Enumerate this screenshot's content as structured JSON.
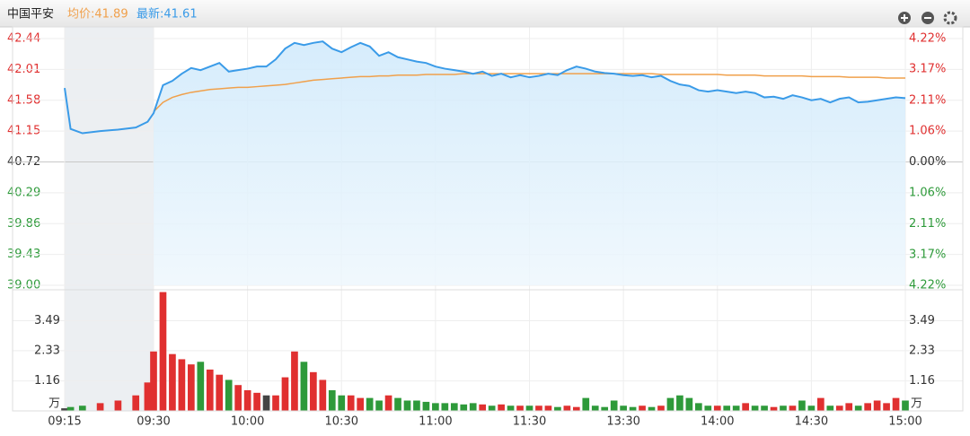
{
  "chart_data": {
    "type": "line",
    "title": "中国平安",
    "x": [
      -15,
      -14,
      -12,
      -9,
      -6,
      -3,
      -1,
      0,
      3,
      6,
      9,
      12,
      15,
      18,
      21,
      24,
      27,
      30,
      33,
      36,
      39,
      42,
      45,
      48,
      51,
      54,
      57,
      60,
      63,
      66,
      69,
      72,
      75,
      78,
      81,
      84,
      87,
      90,
      93,
      96,
      99,
      102,
      105,
      108,
      111,
      114,
      117,
      120,
      123,
      126,
      129,
      132,
      135,
      138,
      141,
      144,
      147,
      150,
      153,
      156,
      159,
      162,
      165,
      168,
      171,
      174,
      177,
      180,
      183,
      186,
      189,
      192,
      195,
      198,
      201,
      204,
      207,
      210,
      213,
      216,
      219,
      222,
      225,
      228,
      231,
      234,
      237,
      240
    ],
    "xlim": [
      -15,
      240
    ],
    "xticks": [
      {
        "value": -15,
        "label": "09:15"
      },
      {
        "value": 0,
        "label": "09:30"
      },
      {
        "value": 30,
        "label": "10:00"
      },
      {
        "value": 60,
        "label": "10:30"
      },
      {
        "value": 90,
        "label": "11:00"
      },
      {
        "value": 120,
        "label": "11:30"
      },
      {
        "value": 150,
        "label": "13:30"
      },
      {
        "value": 180,
        "label": "14:00"
      },
      {
        "value": 210,
        "label": "14:30"
      },
      {
        "value": 240,
        "label": "15:00"
      }
    ],
    "ylim": [
      39.0,
      42.44
    ],
    "yticks": [
      42.44,
      42.01,
      41.58,
      41.15,
      40.72,
      40.29,
      39.86,
      39.43,
      {
        "value": 39.0,
        "label": "39.00"
      }
    ],
    "y2lim": [
      -4.22,
      4.22
    ],
    "y2ticks": [
      {
        "value": 4.22,
        "label": "4.22%"
      },
      {
        "value": 3.17,
        "label": "3.17%"
      },
      {
        "value": 2.11,
        "label": "2.11%"
      },
      {
        "value": 1.06,
        "label": "1.06%"
      },
      {
        "value": 0,
        "label": "0.00%"
      },
      {
        "value": -1.06,
        "label": "1.06%"
      },
      {
        "value": -2.11,
        "label": "2.11%"
      },
      {
        "value": -3.17,
        "label": "3.17%"
      },
      {
        "value": -4.22,
        "label": "4.22%"
      }
    ],
    "series": [
      {
        "name": "均价:41.89",
        "color": "#f0a04b",
        "values": [
          null,
          null,
          null,
          null,
          null,
          null,
          null,
          41.42,
          41.55,
          41.62,
          41.66,
          41.69,
          41.71,
          41.73,
          41.74,
          41.75,
          41.76,
          41.76,
          41.77,
          41.78,
          41.79,
          41.8,
          41.82,
          41.84,
          41.86,
          41.87,
          41.88,
          41.89,
          41.9,
          41.91,
          41.91,
          41.92,
          41.92,
          41.93,
          41.93,
          41.93,
          41.94,
          41.94,
          41.94,
          41.94,
          41.95,
          41.95,
          41.95,
          41.95,
          41.95,
          41.95,
          41.95,
          41.95,
          41.95,
          41.95,
          41.95,
          41.95,
          41.95,
          41.95,
          41.95,
          41.95,
          41.95,
          41.95,
          41.95,
          41.95,
          41.95,
          41.94,
          41.94,
          41.94,
          41.94,
          41.94,
          41.94,
          41.94,
          41.93,
          41.93,
          41.93,
          41.93,
          41.92,
          41.92,
          41.92,
          41.92,
          41.92,
          41.91,
          41.91,
          41.91,
          41.91,
          41.9,
          41.9,
          41.9,
          41.9,
          41.89,
          41.89,
          41.89
        ]
      },
      {
        "name": "最新:41.61",
        "color": "#3a9be8",
        "values": [
          41.75,
          41.18,
          41.12,
          41.15,
          41.17,
          41.2,
          41.28,
          41.4,
          41.79,
          41.85,
          41.95,
          42.03,
          42.0,
          42.05,
          42.1,
          41.98,
          42.0,
          42.02,
          42.05,
          42.05,
          42.15,
          42.3,
          42.38,
          42.35,
          42.38,
          42.4,
          42.3,
          42.25,
          42.32,
          42.38,
          42.33,
          42.2,
          42.25,
          42.18,
          42.15,
          42.12,
          42.1,
          42.05,
          42.02,
          42.0,
          41.98,
          41.95,
          41.98,
          41.92,
          41.95,
          41.9,
          41.93,
          41.9,
          41.92,
          41.95,
          41.93,
          42.0,
          42.05,
          42.02,
          41.98,
          41.96,
          41.95,
          41.93,
          41.92,
          41.93,
          41.9,
          41.92,
          41.85,
          41.8,
          41.78,
          41.72,
          41.7,
          41.72,
          41.7,
          41.68,
          41.7,
          41.68,
          41.62,
          41.63,
          41.6,
          41.65,
          41.62,
          41.58,
          41.6,
          41.55,
          41.6,
          41.62,
          41.55,
          41.56,
          41.58,
          41.6,
          41.62,
          41.61
        ]
      }
    ],
    "volume": {
      "unit": "万",
      "ylim": [
        0,
        4.62
      ],
      "yticks": [
        1.16,
        2.33,
        3.49
      ],
      "values": [
        0.1,
        0.15,
        0.2,
        0.3,
        0.4,
        0.6,
        1.1,
        2.3,
        4.6,
        2.2,
        2.0,
        1.8,
        1.9,
        1.6,
        1.4,
        1.2,
        1.0,
        0.8,
        0.7,
        0.6,
        0.6,
        1.3,
        2.3,
        1.9,
        1.5,
        1.2,
        0.8,
        0.6,
        0.6,
        0.5,
        0.5,
        0.4,
        0.6,
        0.5,
        0.4,
        0.4,
        0.35,
        0.3,
        0.3,
        0.3,
        0.25,
        0.3,
        0.25,
        0.2,
        0.25,
        0.2,
        0.2,
        0.2,
        0.2,
        0.2,
        0.15,
        0.2,
        0.15,
        0.5,
        0.2,
        0.15,
        0.4,
        0.2,
        0.15,
        0.2,
        0.15,
        0.2,
        0.5,
        0.6,
        0.5,
        0.3,
        0.2,
        0.2,
        0.2,
        0.2,
        0.3,
        0.2,
        0.2,
        0.15,
        0.2,
        0.2,
        0.4,
        0.2,
        0.5,
        0.2,
        0.2,
        0.3,
        0.2,
        0.3,
        0.4,
        0.3,
        0.5,
        0.4
      ]
    }
  }
}
